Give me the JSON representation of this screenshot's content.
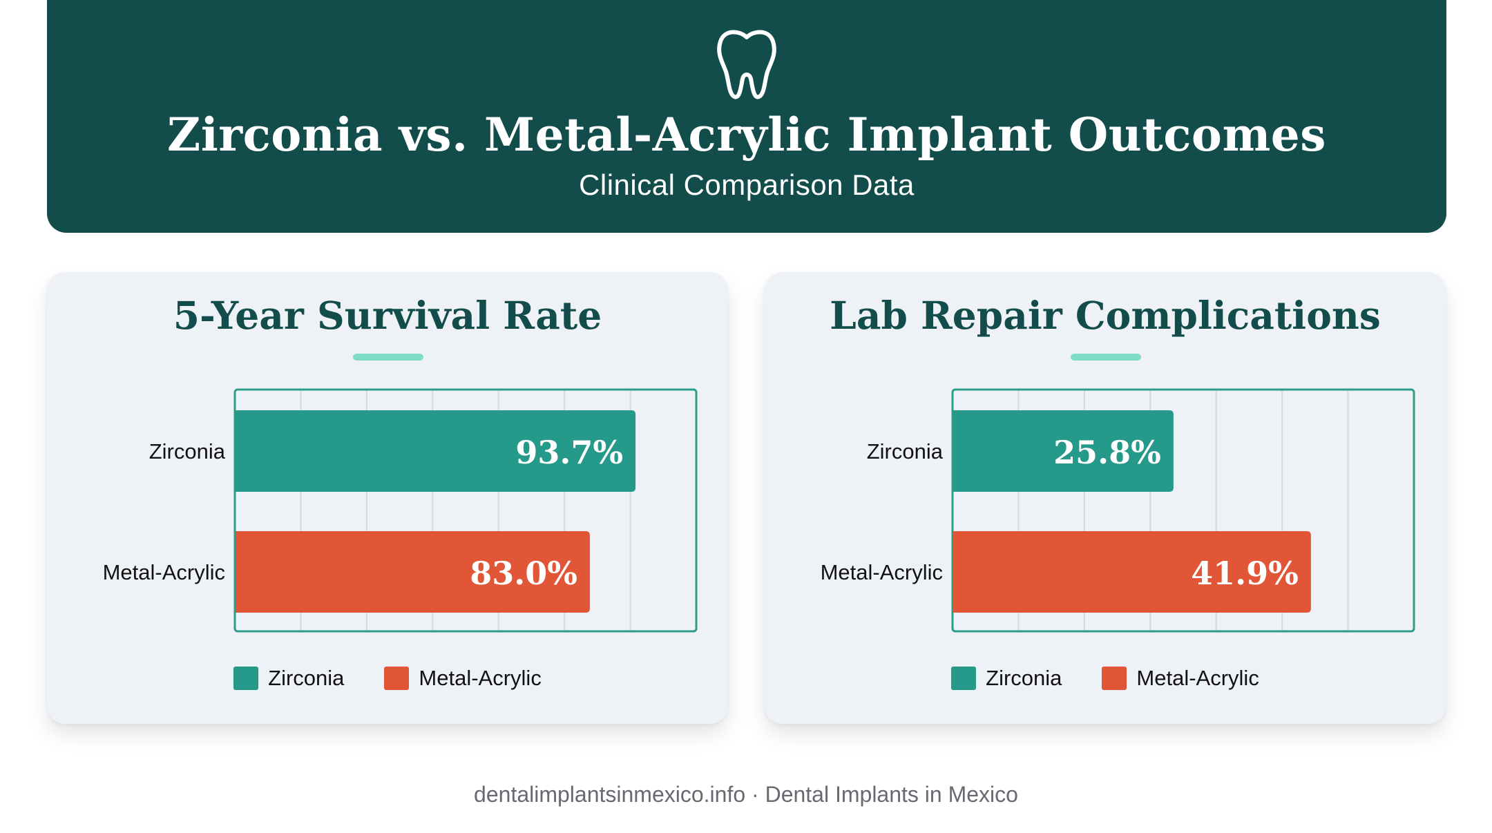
{
  "header": {
    "icon": "tooth-icon",
    "title": "Zirconia vs. Metal-Acrylic Implant Outcomes",
    "subtitle": "Clinical Comparison Data"
  },
  "colors": {
    "header_bg": "#124c4b",
    "zirconia": "#25998a",
    "metal_acrylic": "#e05637",
    "accent": "#7fdcc6"
  },
  "legend": [
    {
      "label": "Zirconia",
      "color": "#25998a"
    },
    {
      "label": "Metal-Acrylic",
      "color": "#e05637"
    }
  ],
  "chart_data": [
    {
      "type": "bar",
      "orientation": "horizontal",
      "title": "5-Year Survival Rate",
      "categories": [
        "Zirconia",
        "Metal-Acrylic"
      ],
      "values": [
        93.7,
        83.0
      ],
      "value_labels": [
        "93.7%",
        "83.0%"
      ],
      "xlim": [
        0,
        100
      ],
      "grid": true,
      "legend_position": "bottom"
    },
    {
      "type": "bar",
      "orientation": "horizontal",
      "title": "Lab Repair Complications",
      "categories": [
        "Zirconia",
        "Metal-Acrylic"
      ],
      "values": [
        25.8,
        41.9
      ],
      "value_labels": [
        "25.8%",
        "41.9%"
      ],
      "xlim": [
        0,
        50
      ],
      "grid": true,
      "legend_position": "bottom"
    }
  ],
  "footer": "dentalimplantsinmexico.info · Dental Implants in Mexico"
}
